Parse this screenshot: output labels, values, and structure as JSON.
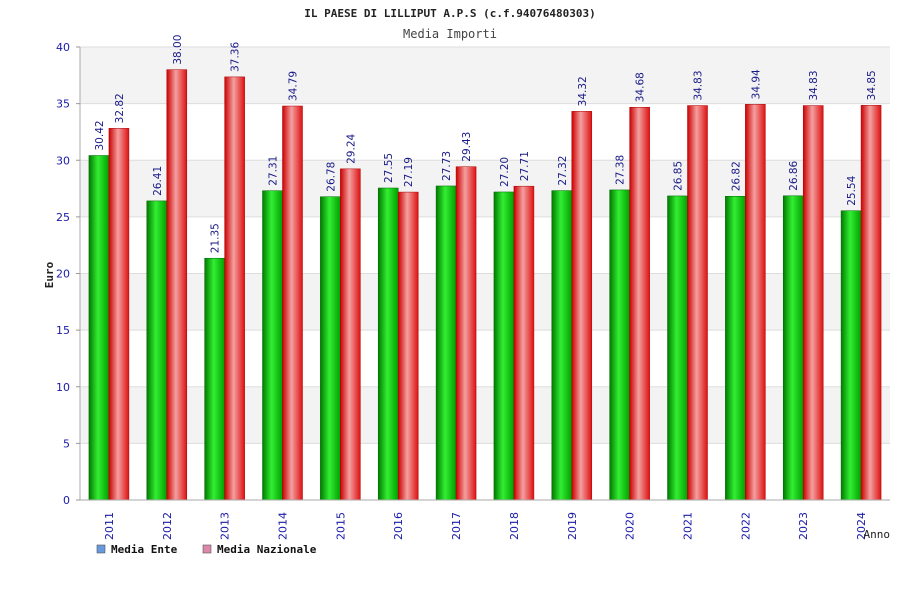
{
  "chart_data": {
    "type": "bar",
    "title": "IL PAESE DI LILLIPUT A.P.S (c.f.94076480303)",
    "subtitle": "Media Importi",
    "xlabel": "Anno",
    "ylabel": "Euro",
    "ylim": [
      0,
      40
    ],
    "yticks": [
      0,
      5,
      10,
      15,
      20,
      25,
      30,
      35,
      40
    ],
    "grid": true,
    "legend_position": "bottom-left",
    "categories": [
      "2011",
      "2012",
      "2013",
      "2014",
      "2015",
      "2016",
      "2017",
      "2018",
      "2019",
      "2020",
      "2021",
      "2022",
      "2023",
      "2024"
    ],
    "series": [
      {
        "name": "Media Ente",
        "legend_color": "#6699dd",
        "bar_color": "#00bb00",
        "values": [
          30.42,
          26.41,
          21.35,
          27.31,
          26.78,
          27.55,
          27.73,
          27.2,
          27.32,
          27.38,
          26.85,
          26.82,
          26.86,
          25.54
        ],
        "labels": [
          "30.42",
          "26.41",
          "21.35",
          "27.31",
          "26.78",
          "27.55",
          "27.73",
          "27.20",
          "27.32",
          "27.38",
          "26.85",
          "26.82",
          "26.86",
          "25.54"
        ]
      },
      {
        "name": "Media Nazionale",
        "legend_color": "#dd88aa",
        "bar_color": "#ee2222",
        "values": [
          32.82,
          38.0,
          37.36,
          34.79,
          29.24,
          27.19,
          29.43,
          27.71,
          34.32,
          34.68,
          34.83,
          34.94,
          34.83,
          34.85
        ],
        "labels": [
          "32.82",
          "38.00",
          "37.36",
          "34.79",
          "29.24",
          "27.19",
          "29.43",
          "27.71",
          "34.32",
          "34.68",
          "34.83",
          "34.94",
          "34.83",
          "34.85"
        ]
      }
    ]
  }
}
